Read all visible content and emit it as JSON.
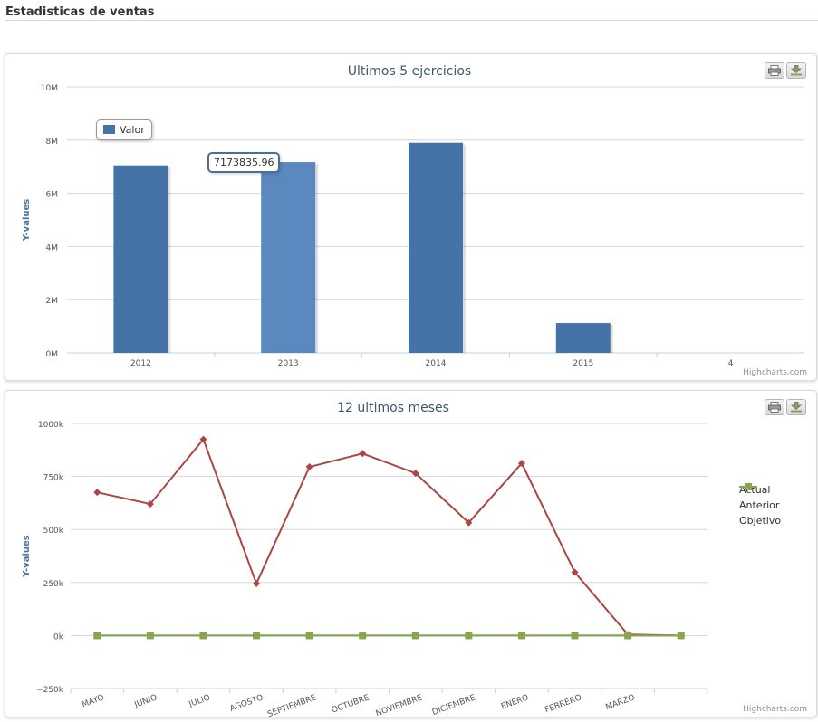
{
  "page": {
    "title": "Estadisticas de ventas"
  },
  "icons": {
    "print": "print-icon",
    "export": "download-icon"
  },
  "chart_data": [
    {
      "type": "bar",
      "title": "Ultimos 5 ejercicios",
      "ylabel": "Y-values",
      "categories": [
        "2012",
        "2013",
        "2014",
        "2015",
        "4"
      ],
      "series": [
        {
          "name": "Valor",
          "color": "#4572a7",
          "hover_color": "#5b89bf",
          "values": [
            7050000,
            7173835.96,
            7900000,
            1120000,
            0
          ]
        }
      ],
      "yticks": [
        "0M",
        "2M",
        "4M",
        "6M",
        "8M",
        "10M"
      ],
      "ylim": [
        0,
        10000000
      ],
      "grid": true,
      "legend": "top-left",
      "tooltip": "7173835.96",
      "credit": "Highcharts.com"
    },
    {
      "type": "line",
      "title": "12 ultimos meses",
      "ylabel": "Y-values",
      "categories": [
        "MAYO",
        "JUNIO",
        "JULIO",
        "AGOSTO",
        "SEPTIEMBRE",
        "OCTUBRE",
        "NOVIEMBRE",
        "DICIEMBRE",
        "ENERO",
        "FEBRERO",
        "MARZO",
        ""
      ],
      "series": [
        {
          "name": "Actual",
          "color": "#4572a7",
          "marker": "circle",
          "values": [
            0,
            0,
            0,
            0,
            0,
            0,
            0,
            0,
            0,
            0,
            0,
            0
          ]
        },
        {
          "name": "Anterior",
          "color": "#aa4643",
          "marker": "diamond",
          "values": [
            675000,
            620000,
            925000,
            245000,
            795000,
            858000,
            765000,
            532000,
            812000,
            298000,
            5000,
            0
          ]
        },
        {
          "name": "Objetivo",
          "color": "#89a54e",
          "marker": "square",
          "values": [
            0,
            0,
            0,
            0,
            0,
            0,
            0,
            0,
            0,
            0,
            0,
            0
          ]
        }
      ],
      "yticks": [
        "−250k",
        "0k",
        "250k",
        "500k",
        "750k",
        "1000k"
      ],
      "ylim": [
        -250000,
        1000000
      ],
      "grid": true,
      "legend": "right",
      "credit": "Highcharts.com"
    }
  ]
}
